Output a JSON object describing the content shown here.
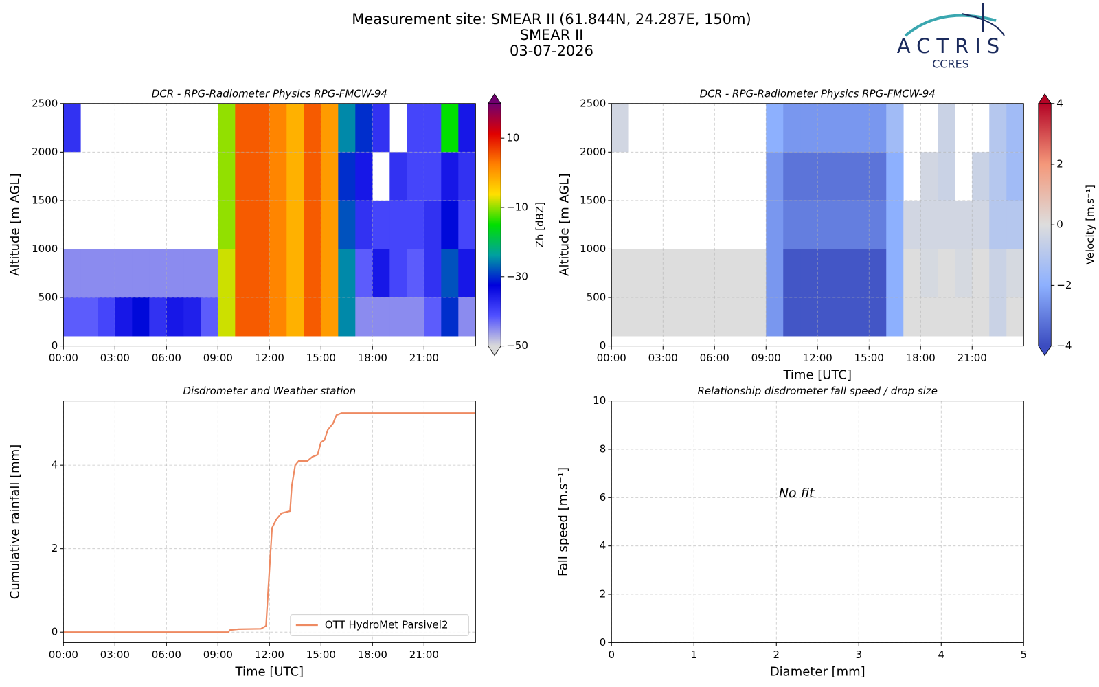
{
  "header": {
    "lines": [
      "Measurement site: SMEAR II (61.844N, 24.287E, 150m)",
      "SMEAR II",
      "03-07-2026"
    ],
    "logo": "ACTRIS",
    "logo_sub": "CCRES"
  },
  "chart_data": [
    {
      "type": "heatmap",
      "title": "DCR - RPG-Radiometer Physics RPG-FMCW-94",
      "ylabel": "Altitude [m AGL]",
      "zlabel": "Zh [dBZ]",
      "xlim": [
        0,
        24
      ],
      "ylim": [
        0,
        2500
      ],
      "xticks": [
        {
          "value": 0,
          "label": "00:00"
        },
        {
          "value": 3,
          "label": "03:00"
        },
        {
          "value": 6,
          "label": "06:00"
        },
        {
          "value": 9,
          "label": "09:00"
        },
        {
          "value": 12,
          "label": "12:00"
        },
        {
          "value": 15,
          "label": "15:00"
        },
        {
          "value": 18,
          "label": "18:00"
        },
        {
          "value": 21,
          "label": "21:00"
        }
      ],
      "yticks": [
        0,
        500,
        1000,
        1500,
        2000,
        2500
      ],
      "xbins": [
        0,
        1,
        2,
        3,
        4,
        5,
        6,
        7,
        8,
        9,
        10,
        11,
        12,
        13,
        14,
        15,
        16,
        17,
        18,
        19,
        20,
        21,
        22,
        23,
        24
      ],
      "ybins": [
        100,
        500,
        1000,
        1500,
        2000,
        2500
      ],
      "z": [
        [
          -42,
          -42,
          -40,
          -35,
          -32,
          -38,
          -35,
          -36,
          -42,
          -8,
          5,
          5,
          2,
          -2,
          5,
          0,
          -25,
          -45,
          -45,
          -45,
          -45,
          -42,
          -30,
          -45
        ],
        [
          -45,
          -45,
          -45,
          -45,
          -45,
          -45,
          -45,
          -45,
          -45,
          -8,
          5,
          5,
          2,
          -2,
          5,
          0,
          -25,
          -42,
          -35,
          -40,
          -42,
          -38,
          -28,
          -35
        ],
        [
          null,
          null,
          null,
          null,
          null,
          null,
          null,
          null,
          null,
          -10,
          5,
          5,
          2,
          -2,
          5,
          0,
          -28,
          -38,
          -40,
          -40,
          -40,
          -38,
          -32,
          -40
        ],
        [
          null,
          null,
          null,
          null,
          null,
          null,
          null,
          null,
          null,
          -10,
          5,
          5,
          2,
          -2,
          5,
          0,
          -30,
          -35,
          null,
          -38,
          -40,
          -40,
          -35,
          -38
        ],
        [
          -38,
          null,
          null,
          null,
          null,
          null,
          null,
          null,
          null,
          -10,
          5,
          5,
          2,
          -2,
          5,
          0,
          -25,
          -30,
          -38,
          null,
          -40,
          -40,
          -15,
          -35
        ]
      ],
      "zlim": [
        -50,
        20
      ],
      "zticks": [
        {
          "value": -50,
          "label": "−50"
        },
        {
          "value": -30,
          "label": "−30"
        },
        {
          "value": -10,
          "label": "−10"
        },
        10
      ],
      "colormap": [
        "#d9d9d9",
        "#5050ff",
        "#0000dd",
        "#00a0a0",
        "#00e000",
        "#ffe000",
        "#ff8000",
        "#e00000",
        "#700070"
      ],
      "grid": true
    },
    {
      "type": "heatmap",
      "title": "DCR - RPG-Radiometer Physics RPG-FMCW-94",
      "xlabel": "Time [UTC]",
      "ylabel": "Altitude [m AGL]",
      "zlabel": "Velocity [m.s⁻¹]",
      "xlim": [
        0,
        24
      ],
      "ylim": [
        0,
        2500
      ],
      "xticks": [
        {
          "value": 0,
          "label": "00:00"
        },
        {
          "value": 3,
          "label": "03:00"
        },
        {
          "value": 6,
          "label": "06:00"
        },
        {
          "value": 9,
          "label": "09:00"
        },
        {
          "value": 12,
          "label": "12:00"
        },
        {
          "value": 15,
          "label": "15:00"
        },
        {
          "value": 18,
          "label": "18:00"
        },
        {
          "value": 21,
          "label": "21:00"
        }
      ],
      "yticks": [
        0,
        500,
        1000,
        1500,
        2000,
        2500
      ],
      "xbins": [
        0,
        1,
        2,
        3,
        4,
        5,
        6,
        7,
        8,
        9,
        10,
        11,
        12,
        13,
        14,
        15,
        16,
        17,
        18,
        19,
        20,
        21,
        22,
        23,
        24
      ],
      "ybins": [
        100,
        500,
        1000,
        1500,
        2000,
        2500
      ],
      "z": [
        [
          0,
          0,
          0,
          0,
          0,
          0,
          0,
          0,
          0,
          -2.5,
          -3.8,
          -3.8,
          -3.8,
          -3.8,
          -3.8,
          -3.8,
          -2,
          0,
          0,
          0,
          0,
          0,
          -0.5,
          0
        ],
        [
          0,
          0,
          0,
          0,
          0,
          0,
          0,
          0,
          0,
          -2.5,
          -3.8,
          -3.8,
          -3.8,
          -3.8,
          -3.8,
          -3.8,
          -2,
          0,
          -0.2,
          0,
          -0.2,
          0,
          -0.5,
          -0.2
        ],
        [
          null,
          null,
          null,
          null,
          null,
          null,
          null,
          null,
          null,
          -2.5,
          -3,
          -3,
          -3,
          -3,
          -3,
          -3,
          -2,
          -0.3,
          -0.3,
          -0.3,
          -0.3,
          -0.3,
          -1,
          -1
        ],
        [
          null,
          null,
          null,
          null,
          null,
          null,
          null,
          null,
          null,
          -2.5,
          -3.2,
          -3.2,
          -3.2,
          -3.2,
          -3.2,
          -3.2,
          -2,
          null,
          -0.3,
          -0.5,
          null,
          -0.5,
          -1,
          -1.5
        ],
        [
          -0.3,
          null,
          null,
          null,
          null,
          null,
          null,
          null,
          null,
          -2,
          -2.5,
          -2.5,
          -2.5,
          -2.5,
          -2.5,
          -2.5,
          -1.5,
          null,
          null,
          -0.5,
          null,
          null,
          -1,
          -1.5
        ]
      ],
      "zlim": [
        -4,
        4
      ],
      "zticks": [
        {
          "value": -4,
          "label": "−4"
        },
        {
          "value": -2,
          "label": "−2"
        },
        0,
        2,
        4
      ],
      "colormap": [
        "#3b4cc0",
        "#8db0fe",
        "#dddddd",
        "#f4987a",
        "#b40426"
      ],
      "grid": true
    },
    {
      "type": "line",
      "title": "Disdrometer and Weather station",
      "xlabel": "Time [UTC]",
      "ylabel": "Cumulative rainfall [mm]",
      "xlim": [
        0,
        24
      ],
      "ylim": [
        -0.25,
        5.54
      ],
      "xticks": [
        {
          "value": 0,
          "label": "00:00"
        },
        {
          "value": 3,
          "label": "03:00"
        },
        {
          "value": 6,
          "label": "06:00"
        },
        {
          "value": 9,
          "label": "09:00"
        },
        {
          "value": 12,
          "label": "12:00"
        },
        {
          "value": 15,
          "label": "15:00"
        },
        {
          "value": 18,
          "label": "18:00"
        },
        {
          "value": 21,
          "label": "21:00"
        }
      ],
      "yticks": [
        0,
        2,
        4
      ],
      "x": [
        0,
        9.6,
        9.7,
        10.2,
        11.5,
        11.8,
        12.0,
        12.15,
        12.4,
        12.7,
        13.2,
        13.3,
        13.5,
        13.7,
        14.2,
        14.5,
        14.8,
        15.0,
        15.2,
        15.4,
        15.7,
        15.9,
        16.2,
        24
      ],
      "series": [
        {
          "name": "OTT HydroMet Parsivel2",
          "color": "#ee8a62",
          "values": [
            0,
            0,
            0.05,
            0.07,
            0.08,
            0.15,
            1.5,
            2.5,
            2.7,
            2.85,
            2.9,
            3.5,
            4.0,
            4.1,
            4.1,
            4.2,
            4.25,
            4.55,
            4.6,
            4.85,
            5.0,
            5.2,
            5.25,
            5.25
          ]
        }
      ],
      "legend": "lower right",
      "grid": true
    },
    {
      "type": "scatter",
      "title": "Relationship disdrometer fall speed / drop size",
      "xlabel": "Diameter [mm]",
      "ylabel": "Fall speed [m.s⁻¹]",
      "annotation": "No fit",
      "xlim": [
        0,
        5
      ],
      "ylim": [
        0,
        10
      ],
      "xticks": [
        0,
        1,
        2,
        3,
        4,
        5
      ],
      "yticks": [
        0,
        2,
        4,
        6,
        8,
        10
      ],
      "grid": true
    }
  ]
}
